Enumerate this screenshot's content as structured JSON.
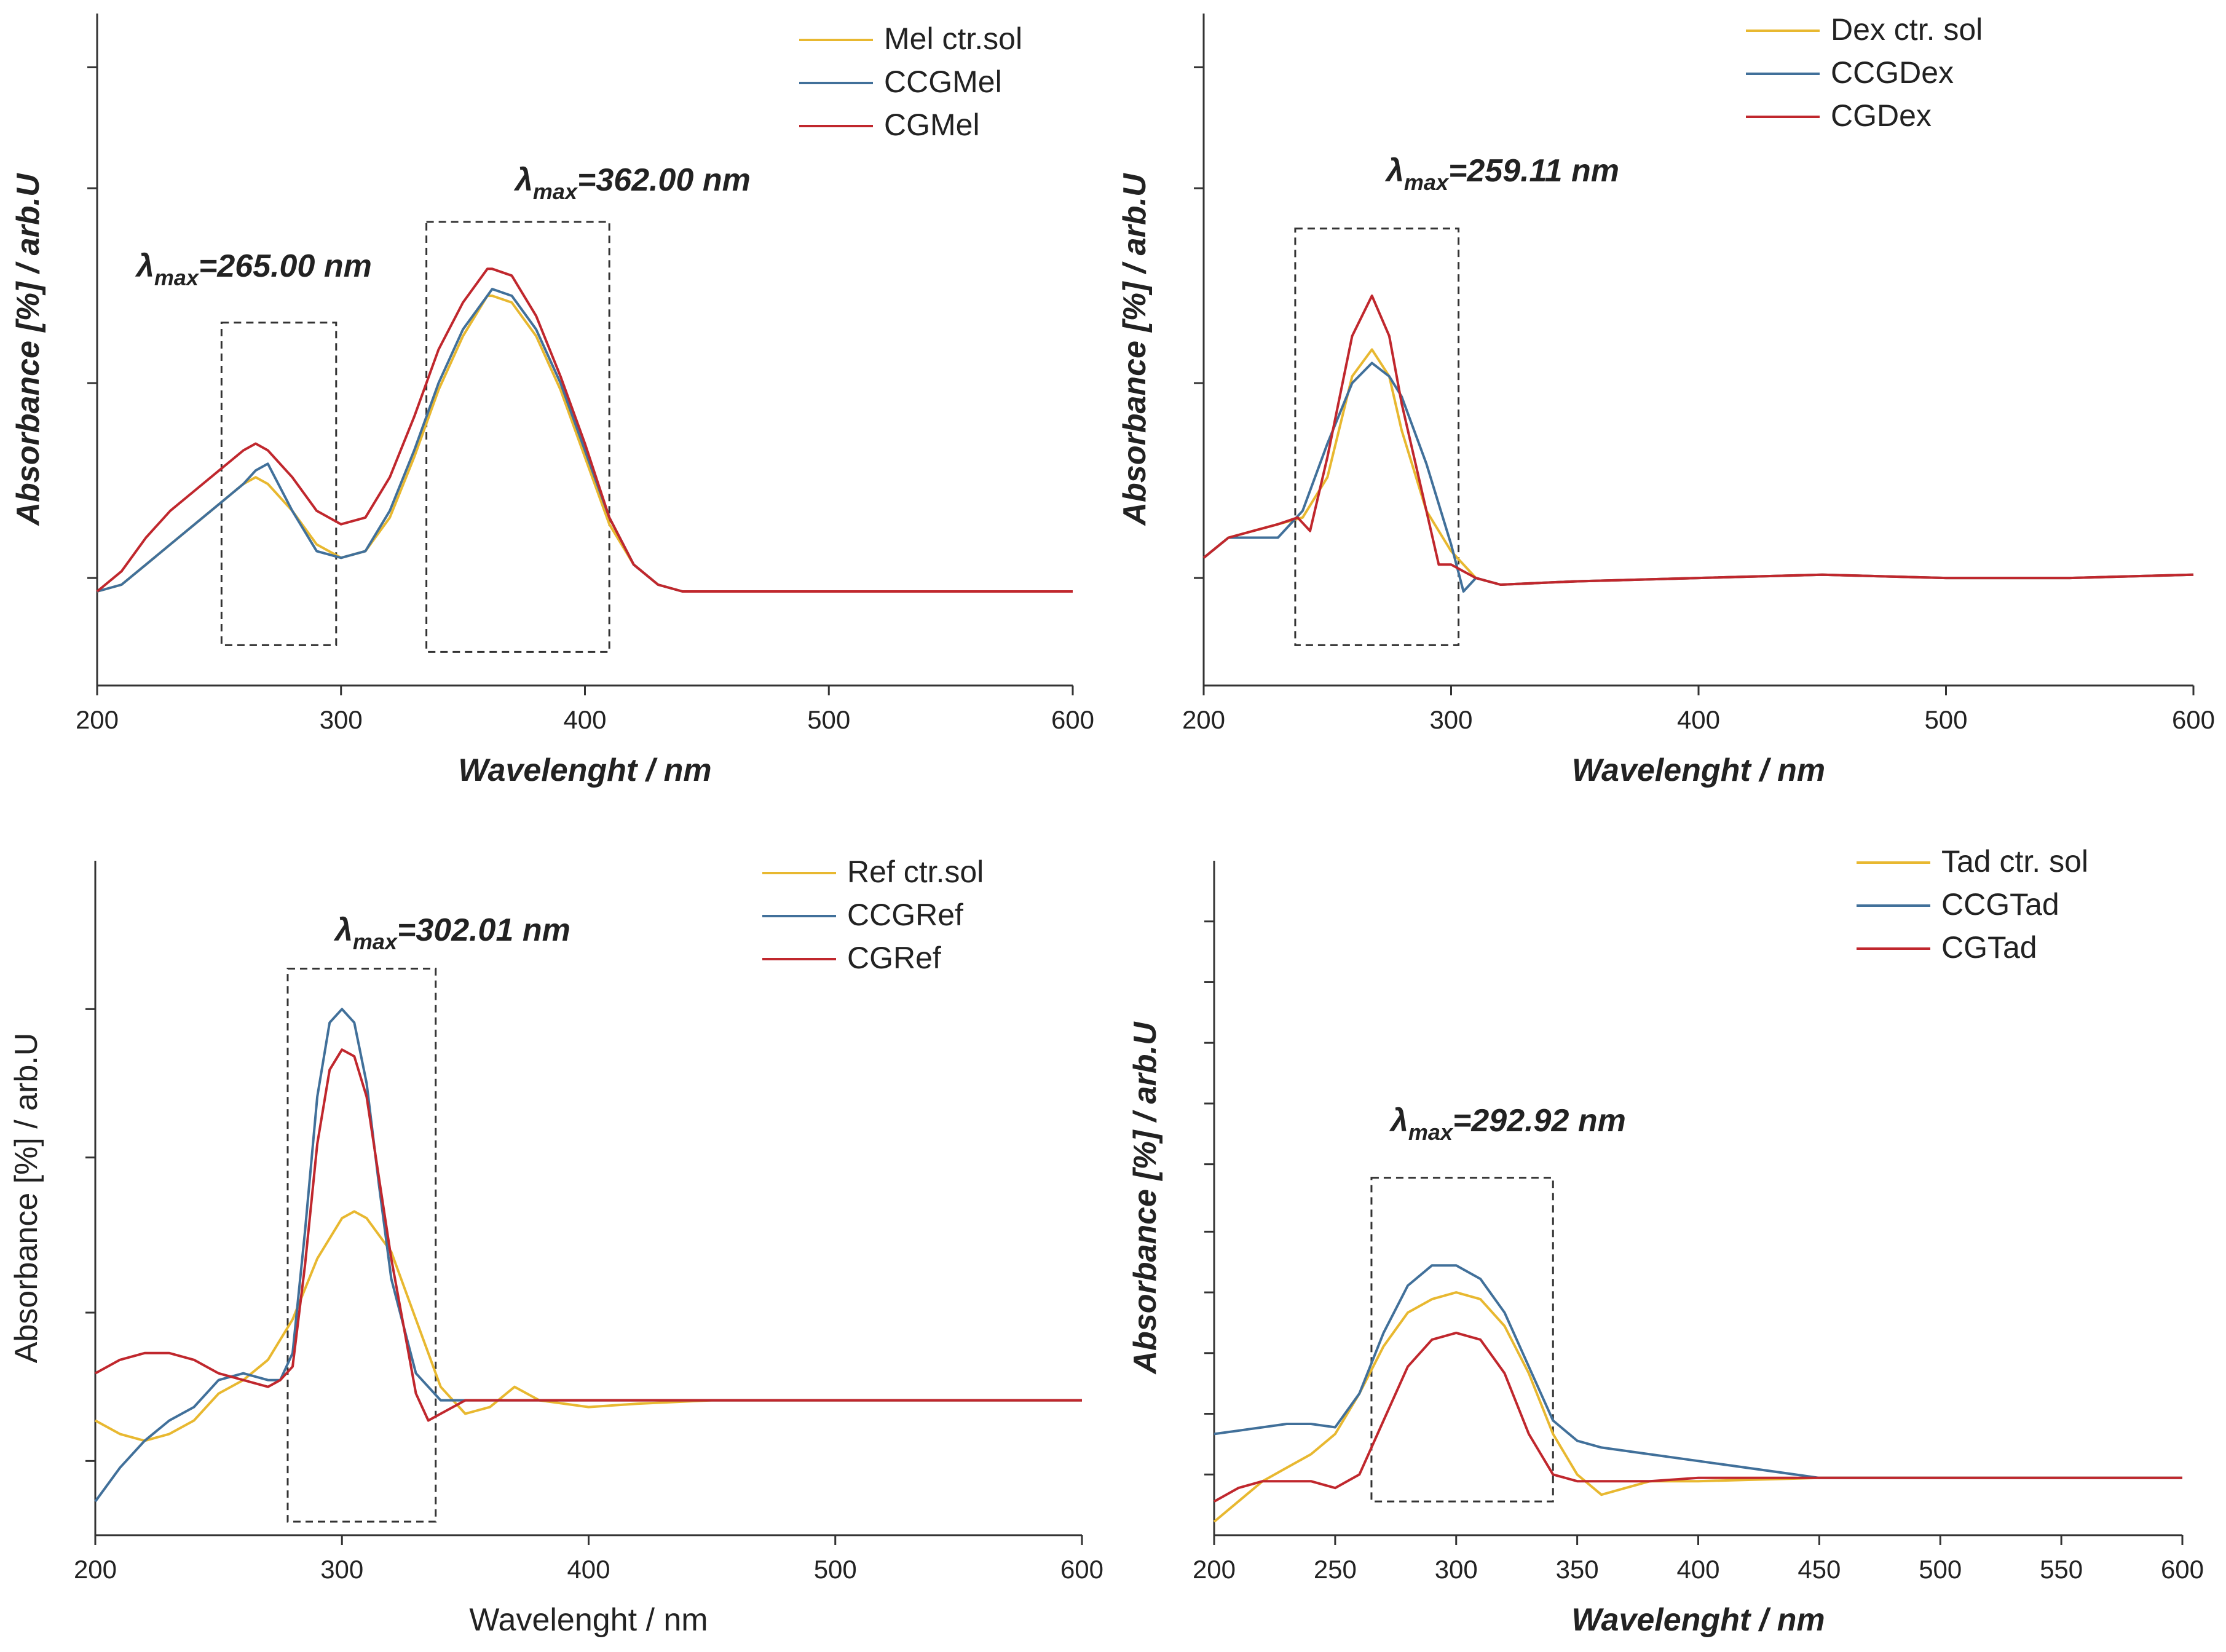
{
  "colors": {
    "yellow": "#e8b830",
    "blue": "#41709a",
    "red": "#c0272d",
    "axis": "#333333",
    "box": "#333333"
  },
  "chart_data": [
    {
      "type": "line",
      "title": "",
      "xlabel": "Wavelenght / nm",
      "ylabel": "Absorbance [%] / arb.U",
      "xlim": [
        200,
        600
      ],
      "ylim": [
        0,
        1
      ],
      "xticks": [
        200,
        300,
        400,
        500,
        600
      ],
      "annotation": {
        "lambda": "λ",
        "sub": "max",
        "value": "=265.00 nm"
      },
      "annotation2": {
        "lambda": "λ",
        "sub": "max",
        "value": "=362.00 nm"
      },
      "boxes": [
        [
          251,
          298,
          0.06,
          0.54
        ],
        [
          335,
          410,
          0.05,
          0.69
        ]
      ],
      "series": [
        {
          "name": "Mel ctr.sol",
          "color": "yellow",
          "x": [
            200,
            210,
            220,
            230,
            240,
            250,
            260,
            265,
            270,
            280,
            290,
            300,
            310,
            320,
            330,
            340,
            350,
            360,
            362,
            370,
            380,
            390,
            400,
            410,
            420,
            430,
            440,
            450,
            500,
            550,
            600
          ],
          "y": [
            0.14,
            0.15,
            0.18,
            0.21,
            0.24,
            0.27,
            0.3,
            0.31,
            0.3,
            0.26,
            0.21,
            0.19,
            0.2,
            0.25,
            0.34,
            0.44,
            0.52,
            0.58,
            0.58,
            0.57,
            0.52,
            0.44,
            0.34,
            0.24,
            0.18,
            0.15,
            0.14,
            0.14,
            0.14,
            0.14,
            0.14
          ]
        },
        {
          "name": "CCGMel",
          "color": "blue",
          "x": [
            200,
            210,
            220,
            230,
            240,
            250,
            260,
            265,
            270,
            280,
            290,
            300,
            310,
            320,
            330,
            340,
            350,
            360,
            362,
            370,
            380,
            390,
            400,
            410,
            420,
            430,
            440,
            450,
            500,
            550,
            600
          ],
          "y": [
            0.14,
            0.15,
            0.18,
            0.21,
            0.24,
            0.27,
            0.3,
            0.32,
            0.33,
            0.26,
            0.2,
            0.19,
            0.2,
            0.26,
            0.35,
            0.45,
            0.53,
            0.58,
            0.59,
            0.58,
            0.53,
            0.45,
            0.35,
            0.25,
            0.18,
            0.15,
            0.14,
            0.14,
            0.14,
            0.14,
            0.14
          ]
        },
        {
          "name": "CGMel",
          "color": "red",
          "x": [
            200,
            210,
            220,
            230,
            240,
            250,
            260,
            265,
            270,
            280,
            290,
            300,
            310,
            320,
            330,
            340,
            350,
            360,
            362,
            370,
            380,
            390,
            400,
            410,
            420,
            430,
            440,
            450,
            500,
            550,
            600
          ],
          "y": [
            0.14,
            0.17,
            0.22,
            0.26,
            0.29,
            0.32,
            0.35,
            0.36,
            0.35,
            0.31,
            0.26,
            0.24,
            0.25,
            0.31,
            0.4,
            0.5,
            0.57,
            0.62,
            0.62,
            0.61,
            0.55,
            0.46,
            0.36,
            0.25,
            0.18,
            0.15,
            0.14,
            0.14,
            0.14,
            0.14,
            0.14
          ]
        }
      ]
    },
    {
      "type": "line",
      "title": "",
      "xlabel": "Wavelenght / nm",
      "ylabel": "Absorbance [%] / arb.U",
      "xlim": [
        200,
        600
      ],
      "ylim": [
        0,
        1
      ],
      "xticks": [
        200,
        300,
        400,
        500,
        600
      ],
      "annotation": {
        "lambda": "λ",
        "sub": "max",
        "value": "=259.11 nm"
      },
      "boxes": [
        [
          237,
          303,
          0.06,
          0.68
        ]
      ],
      "series": [
        {
          "name": "Dex ctr. sol",
          "color": "yellow",
          "x": [
            200,
            210,
            220,
            230,
            240,
            250,
            260,
            268,
            275,
            280,
            290,
            300,
            310,
            320,
            350,
            400,
            450,
            500,
            550,
            600
          ],
          "y": [
            0.19,
            0.22,
            0.23,
            0.24,
            0.25,
            0.31,
            0.46,
            0.5,
            0.46,
            0.38,
            0.26,
            0.2,
            0.16,
            0.15,
            0.155,
            0.16,
            0.165,
            0.16,
            0.16,
            0.165
          ]
        },
        {
          "name": "CCGDex",
          "color": "blue",
          "x": [
            200,
            210,
            220,
            230,
            240,
            250,
            260,
            268,
            275,
            280,
            290,
            300,
            305,
            310,
            320,
            350,
            400,
            450,
            500,
            550,
            600
          ],
          "y": [
            0.19,
            0.22,
            0.22,
            0.22,
            0.26,
            0.36,
            0.45,
            0.48,
            0.46,
            0.43,
            0.33,
            0.21,
            0.14,
            0.16,
            0.15,
            0.155,
            0.16,
            0.165,
            0.16,
            0.16,
            0.165
          ]
        },
        {
          "name": "CGDex",
          "color": "red",
          "x": [
            200,
            210,
            220,
            230,
            238,
            243,
            250,
            260,
            268,
            275,
            280,
            290,
            295,
            300,
            305,
            310,
            320,
            350,
            400,
            450,
            500,
            550,
            600
          ],
          "y": [
            0.19,
            0.22,
            0.23,
            0.24,
            0.25,
            0.23,
            0.34,
            0.52,
            0.58,
            0.52,
            0.42,
            0.26,
            0.18,
            0.18,
            0.17,
            0.16,
            0.15,
            0.155,
            0.16,
            0.165,
            0.16,
            0.16,
            0.165
          ]
        }
      ]
    },
    {
      "type": "line",
      "title": "",
      "xlabel": "Wavelenght / nm",
      "ylabel": "Absorbance [%] / arb.U",
      "xlim": [
        200,
        600
      ],
      "ylim": [
        0,
        1
      ],
      "xticks": [
        200,
        300,
        400,
        500,
        600
      ],
      "annotation": {
        "lambda": "λ",
        "sub": "max",
        "value": "=302.01 nm"
      },
      "boxes": [
        [
          278,
          338,
          0.02,
          0.84
        ]
      ],
      "series": [
        {
          "name": "Ref ctr.sol",
          "color": "yellow",
          "x": [
            200,
            210,
            220,
            230,
            240,
            250,
            260,
            270,
            280,
            290,
            300,
            305,
            310,
            320,
            330,
            340,
            350,
            360,
            370,
            380,
            400,
            420,
            450,
            500,
            550,
            600
          ],
          "y": [
            0.17,
            0.15,
            0.14,
            0.15,
            0.17,
            0.21,
            0.23,
            0.26,
            0.32,
            0.41,
            0.47,
            0.48,
            0.47,
            0.42,
            0.32,
            0.22,
            0.18,
            0.19,
            0.22,
            0.2,
            0.19,
            0.195,
            0.2,
            0.2,
            0.2,
            0.2
          ]
        },
        {
          "name": "CCGRef",
          "color": "blue",
          "x": [
            200,
            210,
            220,
            230,
            240,
            250,
            260,
            270,
            275,
            280,
            285,
            290,
            295,
            300,
            305,
            310,
            315,
            320,
            330,
            340,
            350,
            400,
            450,
            500,
            550,
            600
          ],
          "y": [
            0.05,
            0.1,
            0.14,
            0.17,
            0.19,
            0.23,
            0.24,
            0.23,
            0.23,
            0.27,
            0.45,
            0.65,
            0.76,
            0.78,
            0.76,
            0.67,
            0.52,
            0.38,
            0.24,
            0.2,
            0.2,
            0.2,
            0.2,
            0.2,
            0.2,
            0.2
          ]
        },
        {
          "name": "CGRef",
          "color": "red",
          "x": [
            200,
            210,
            220,
            230,
            240,
            250,
            260,
            270,
            275,
            280,
            285,
            290,
            295,
            300,
            305,
            310,
            315,
            320,
            330,
            335,
            340,
            350,
            400,
            450,
            500,
            550,
            600
          ],
          "y": [
            0.24,
            0.26,
            0.27,
            0.27,
            0.26,
            0.24,
            0.23,
            0.22,
            0.23,
            0.25,
            0.4,
            0.58,
            0.69,
            0.72,
            0.71,
            0.65,
            0.53,
            0.41,
            0.21,
            0.17,
            0.18,
            0.2,
            0.2,
            0.2,
            0.2,
            0.2,
            0.2
          ]
        }
      ]
    },
    {
      "type": "line",
      "title": "",
      "xlabel": "Wavelenght / nm",
      "ylabel": "Absorbance [%] / arb.U",
      "xlim": [
        200,
        600
      ],
      "ylim": [
        0,
        1
      ],
      "xticks": [
        200,
        250,
        300,
        350,
        400,
        450,
        500,
        550,
        600
      ],
      "annotation": {
        "lambda": "λ",
        "sub": "max",
        "value": "=292.92 nm"
      },
      "boxes": [
        [
          265,
          340,
          0.05,
          0.53
        ]
      ],
      "series": [
        {
          "name": "Tad ctr. sol",
          "color": "yellow",
          "x": [
            200,
            210,
            220,
            230,
            240,
            250,
            260,
            270,
            280,
            290,
            300,
            310,
            320,
            330,
            340,
            350,
            360,
            370,
            380,
            400,
            450,
            500,
            550,
            600
          ],
          "y": [
            0.02,
            0.05,
            0.08,
            0.1,
            0.12,
            0.15,
            0.21,
            0.28,
            0.33,
            0.35,
            0.36,
            0.35,
            0.31,
            0.24,
            0.15,
            0.09,
            0.06,
            0.07,
            0.08,
            0.08,
            0.085,
            0.085,
            0.085,
            0.085
          ]
        },
        {
          "name": "CCGTad",
          "color": "blue",
          "x": [
            200,
            210,
            220,
            230,
            240,
            250,
            260,
            270,
            280,
            290,
            300,
            310,
            320,
            330,
            340,
            350,
            360,
            370,
            380,
            400,
            450,
            500,
            550,
            600
          ],
          "y": [
            0.15,
            0.155,
            0.16,
            0.165,
            0.165,
            0.16,
            0.21,
            0.3,
            0.37,
            0.4,
            0.4,
            0.38,
            0.33,
            0.25,
            0.17,
            0.14,
            0.13,
            0.125,
            0.12,
            0.11,
            0.085,
            0.085,
            0.085,
            0.085
          ]
        },
        {
          "name": "CGTad",
          "color": "red",
          "x": [
            200,
            210,
            220,
            230,
            240,
            250,
            260,
            270,
            280,
            290,
            300,
            310,
            320,
            330,
            340,
            350,
            360,
            380,
            400,
            450,
            500,
            550,
            600
          ],
          "y": [
            0.05,
            0.07,
            0.08,
            0.08,
            0.08,
            0.07,
            0.09,
            0.17,
            0.25,
            0.29,
            0.3,
            0.29,
            0.24,
            0.15,
            0.09,
            0.08,
            0.08,
            0.08,
            0.085,
            0.085,
            0.085,
            0.085,
            0.085
          ]
        }
      ]
    }
  ]
}
